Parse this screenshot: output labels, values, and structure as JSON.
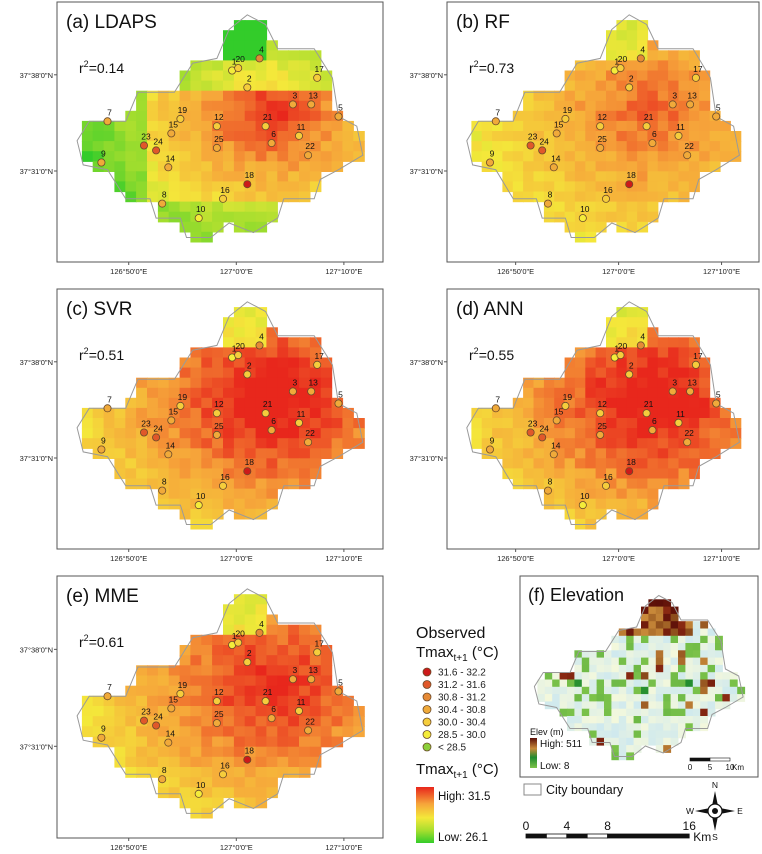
{
  "panels": [
    {
      "id": "lda",
      "title": "(a) LDAPS",
      "r2": "0.14",
      "palette": "green",
      "seed": 3
    },
    {
      "id": "rf",
      "title": "(b) RF",
      "r2": "0.73",
      "palette": "warm",
      "seed": 7
    },
    {
      "id": "svr",
      "title": "(c) SVR",
      "r2": "0.51",
      "palette": "hot",
      "seed": 11
    },
    {
      "id": "ann",
      "title": "(d) ANN",
      "r2": "0.55",
      "palette": "hot",
      "seed": 13
    },
    {
      "id": "mme",
      "title": "(e) MME",
      "r2": "0.61",
      "palette": "mid",
      "seed": 17
    }
  ],
  "r2_prefix": "r",
  "r2_sup": "2",
  "lat_labels": [
    "37°38'0\"N",
    "37°31'0\"N"
  ],
  "lon_labels": [
    "126°50'0\"E",
    "127°0'0\"E",
    "127°10'0\"E"
  ],
  "stations": [
    {
      "id": "1",
      "cls": 5
    },
    {
      "id": "2",
      "cls": 4
    },
    {
      "id": "3",
      "cls": 3
    },
    {
      "id": "4",
      "cls": 2
    },
    {
      "id": "5",
      "cls": 3
    },
    {
      "id": "6",
      "cls": 3
    },
    {
      "id": "7",
      "cls": 3
    },
    {
      "id": "8",
      "cls": 3
    },
    {
      "id": "9",
      "cls": 3
    },
    {
      "id": "10",
      "cls": 5
    },
    {
      "id": "11",
      "cls": 4
    },
    {
      "id": "12",
      "cls": 4
    },
    {
      "id": "13",
      "cls": 3
    },
    {
      "id": "14",
      "cls": 3
    },
    {
      "id": "15",
      "cls": 3
    },
    {
      "id": "16",
      "cls": 4
    },
    {
      "id": "17",
      "cls": 4
    },
    {
      "id": "18",
      "cls": 0
    },
    {
      "id": "19",
      "cls": 4
    },
    {
      "id": "20",
      "cls": 4
    },
    {
      "id": "21",
      "cls": 4
    },
    {
      "id": "22",
      "cls": 3
    },
    {
      "id": "23",
      "cls": 1
    },
    {
      "id": "24",
      "cls": 1
    },
    {
      "id": "25",
      "cls": 3
    }
  ],
  "legend": {
    "observed_title": "Observed",
    "tmax_base": "Tmax",
    "tmax_sub": "t+1",
    "tmax_unit": " (°C)",
    "classes": [
      {
        "label": "31.6 - 32.2",
        "color": "#cc1a1a"
      },
      {
        "label": "31.2 - 31.6",
        "color": "#e0582a"
      },
      {
        "label": "30.8 - 31.2",
        "color": "#e68a36"
      },
      {
        "label": "30.4 - 30.8",
        "color": "#f0aa3a"
      },
      {
        "label": "30.0 - 30.4",
        "color": "#f5cd3c"
      },
      {
        "label": "28.5 - 30.0",
        "color": "#f4ec3a"
      },
      {
        "label": "< 28.5",
        "color": "#8ccf3a"
      }
    ],
    "ramp_high": "High: 31.5",
    "ramp_low": "Low: 26.1",
    "boundary_label": "City boundary",
    "scale_ticks": [
      "0",
      "4",
      "8",
      "16"
    ],
    "scale_unit": "Km",
    "compass": [
      "N",
      "E",
      "S",
      "W"
    ]
  },
  "elevation": {
    "title": "(f) Elevation",
    "legend_title": "Elev (m)",
    "high": "High: 511",
    "low": "Low: 8",
    "scale_ticks": [
      "0",
      "5",
      "10"
    ],
    "scale_unit": "Km"
  },
  "colors": {
    "heat_high": "#e8261c",
    "heat_low": "#33cc2a",
    "boundary": "#9a9a9a",
    "elev_low": "#d8eef0",
    "elev_high": "#7a1a10"
  }
}
